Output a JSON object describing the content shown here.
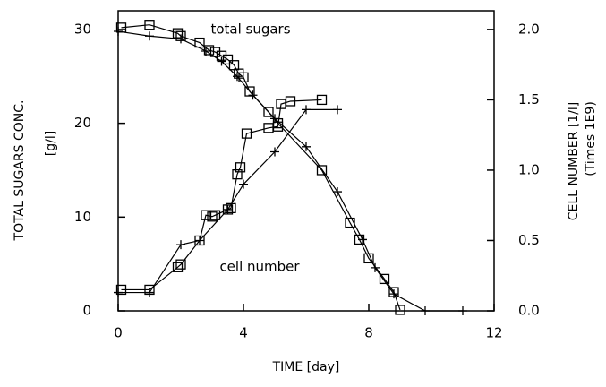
{
  "chart_data": {
    "type": "line",
    "x_label": "TIME [day]",
    "y_label": "TOTAL SUGARS CONC.",
    "y_label_unit": "[g/l]",
    "y2_label": "CELL NUMBER [1/l]",
    "y2_label_unit": "(Times 1E9)",
    "xlim": [
      0,
      12
    ],
    "xticks": [
      0,
      4,
      8,
      12
    ],
    "ylim": [
      0,
      32
    ],
    "yticks": [
      0,
      10,
      20,
      30
    ],
    "y2lim": [
      0,
      2.133
    ],
    "y2ticks": [
      {
        "value": 0,
        "label": "0.0"
      },
      0.5,
      {
        "value": 1,
        "label": "1.0"
      },
      1.5,
      {
        "value": 2,
        "label": "2.0"
      }
    ],
    "color": "#000000",
    "series": [
      {
        "name": "total sugars",
        "marker": "square",
        "x": [
          0.1,
          1.0,
          1.9,
          2.0,
          2.6,
          2.9,
          3.1,
          3.3,
          3.5,
          3.7,
          3.85,
          4.0,
          4.2,
          4.8,
          5.1,
          6.5,
          7.4,
          7.7,
          8.0,
          8.5,
          8.8,
          9.0
        ],
        "values": [
          30.2,
          30.5,
          29.6,
          29.3,
          28.6,
          27.8,
          27.6,
          27.2,
          26.8,
          26.2,
          25.3,
          24.9,
          23.4,
          21.2,
          20.0,
          15.0,
          9.4,
          7.6,
          5.6,
          3.4,
          2.0,
          0.1
        ]
      },
      {
        "marker": "plus",
        "x": [
          0,
          1,
          2,
          2.8,
          3.3,
          3.8,
          4.3,
          5.0,
          6.0,
          7.0,
          7.8,
          8.2,
          8.8,
          9.8,
          11
        ],
        "values": [
          29.8,
          29.3,
          29.0,
          27.7,
          26.6,
          25.0,
          23.0,
          20.5,
          17.5,
          12.7,
          7.6,
          4.6,
          1.8,
          0,
          0
        ]
      },
      {
        "name": "cell number",
        "marker": "square",
        "axis": "y2",
        "x": [
          0.1,
          1.0,
          1.9,
          2.0,
          2.6,
          2.8,
          3.0,
          3.1,
          3.5,
          3.6,
          3.8,
          3.9,
          4.1,
          4.8,
          5.1,
          5.2,
          5.5,
          6.5
        ],
        "values": [
          0.15,
          0.15,
          0.31,
          0.33,
          0.5,
          0.68,
          0.67,
          0.68,
          0.72,
          0.73,
          0.97,
          1.02,
          1.26,
          1.3,
          1.31,
          1.47,
          1.49,
          1.5
        ]
      },
      {
        "marker": "plus",
        "axis": "y2",
        "x": [
          0,
          1,
          2,
          2.6,
          3.5,
          4.0,
          5.0,
          6.0,
          7.0
        ],
        "values": [
          0.13,
          0.13,
          0.47,
          0.5,
          0.72,
          0.9,
          1.13,
          1.43,
          1.43
        ]
      }
    ]
  }
}
